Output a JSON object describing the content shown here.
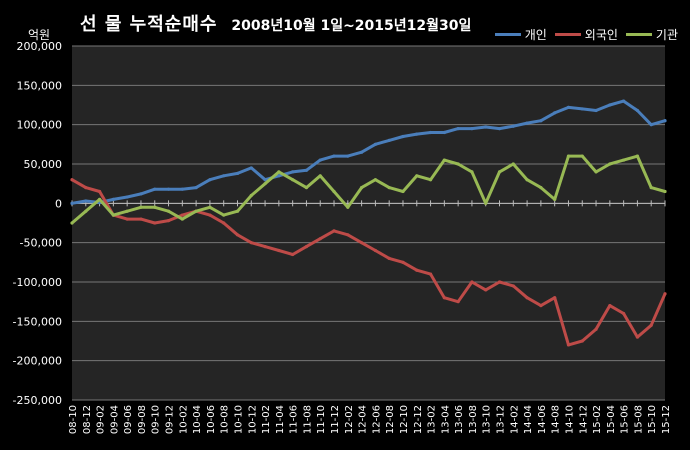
{
  "chart_data": {
    "type": "line",
    "title_main": "선 물 누적순매수",
    "title_period": "2008년10월 1일~2015년12월30일",
    "unit_label": "억원",
    "ylim": [
      -250000,
      200000
    ],
    "y_ticks": [
      200000,
      150000,
      100000,
      50000,
      0,
      -50000,
      -100000,
      -150000,
      -200000,
      -250000
    ],
    "y_tick_labels": [
      "200,000",
      "150,000",
      "100,000",
      "50,000",
      "0",
      "-50,000",
      "-100,000",
      "-150,000",
      "-200,000",
      "-250,000"
    ],
    "x_tick_labels": [
      "08-10",
      "08-12",
      "09-02",
      "09-04",
      "09-06",
      "09-08",
      "09-10",
      "09-12",
      "10-02",
      "10-04",
      "10-06",
      "10-08",
      "10-10",
      "10-12",
      "11-02",
      "11-04",
      "11-06",
      "11-08",
      "11-10",
      "11-12",
      "12-02",
      "12-04",
      "12-06",
      "12-08",
      "12-10",
      "12-12",
      "13-02",
      "13-04",
      "13-06",
      "13-08",
      "13-10",
      "13-12",
      "14-02",
      "14-04",
      "14-06",
      "14-08",
      "14-10",
      "14-12",
      "15-02",
      "15-04",
      "15-06",
      "15-08",
      "15-10",
      "15-12"
    ],
    "grid": true,
    "legend_position": "top-right",
    "series": [
      {
        "name": "개인",
        "color": "#4a7ebb",
        "values": [
          0,
          3000,
          1000,
          5000,
          8000,
          12000,
          18000,
          18000,
          18000,
          20000,
          30000,
          35000,
          38000,
          45000,
          30000,
          35000,
          40000,
          42000,
          55000,
          60000,
          60000,
          65000,
          75000,
          80000,
          85000,
          88000,
          90000,
          90000,
          95000,
          95000,
          97000,
          95000,
          98000,
          102000,
          105000,
          115000,
          122000,
          120000,
          118000,
          125000,
          130000,
          118000,
          100000,
          105000
        ]
      },
      {
        "name": "외국인",
        "color": "#be4b48",
        "values": [
          30000,
          20000,
          15000,
          -15000,
          -20000,
          -20000,
          -25000,
          -22000,
          -15000,
          -10000,
          -15000,
          -25000,
          -40000,
          -50000,
          -55000,
          -60000,
          -65000,
          -55000,
          -45000,
          -35000,
          -40000,
          -50000,
          -60000,
          -70000,
          -75000,
          -85000,
          -90000,
          -120000,
          -125000,
          -100000,
          -110000,
          -100000,
          -105000,
          -120000,
          -130000,
          -120000,
          -180000,
          -175000,
          -160000,
          -130000,
          -140000,
          -170000,
          -155000,
          -115000
        ]
      },
      {
        "name": "기관",
        "color": "#98b954",
        "values": [
          -25000,
          -10000,
          5000,
          -15000,
          -10000,
          -5000,
          -5000,
          -10000,
          -20000,
          -10000,
          -5000,
          -15000,
          -10000,
          10000,
          25000,
          40000,
          30000,
          20000,
          35000,
          15000,
          -5000,
          20000,
          30000,
          20000,
          15000,
          35000,
          30000,
          55000,
          50000,
          40000,
          0,
          40000,
          50000,
          30000,
          20000,
          5000,
          60000,
          60000,
          40000,
          50000,
          55000,
          60000,
          20000,
          15000
        ]
      }
    ]
  }
}
